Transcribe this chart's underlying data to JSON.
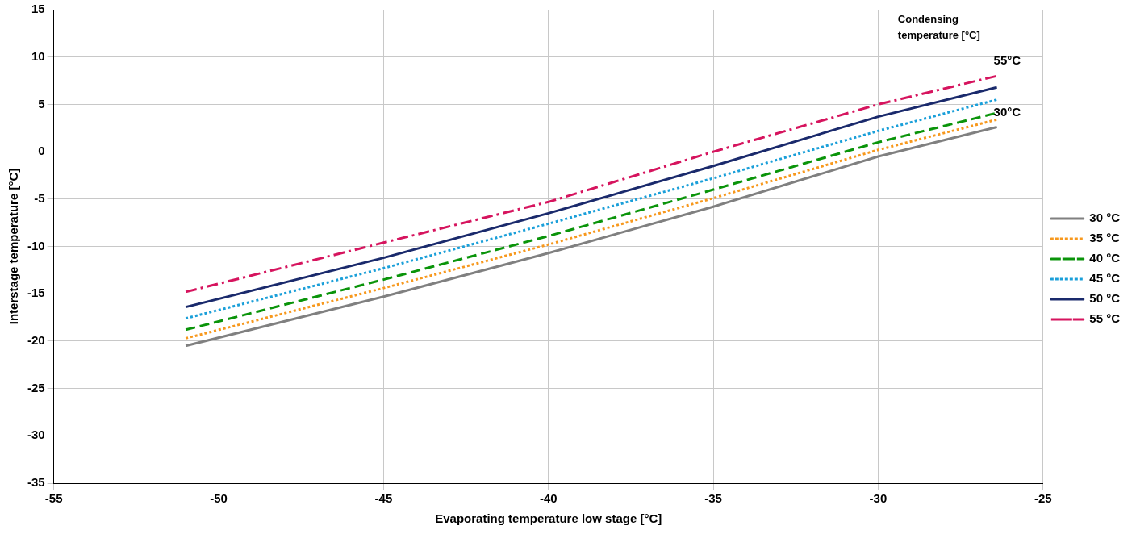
{
  "chart_data": {
    "type": "line",
    "xlabel": "Evaporating temperature low stage [°C]",
    "ylabel": "Interstage temperature [°C]",
    "xlim": [
      -55,
      -25
    ],
    "xticks": [
      -55,
      -50,
      -45,
      -40,
      -35,
      -30,
      -25
    ],
    "ylim": [
      -35,
      15
    ],
    "yticks": [
      -35,
      -30,
      -25,
      -20,
      -15,
      -10,
      -5,
      0,
      5,
      10,
      15
    ],
    "grid": true,
    "legend": "right",
    "marker": "none",
    "x": [
      -51,
      -45,
      -40,
      -35,
      -30,
      -26.4
    ],
    "series": [
      {
        "name": "30 °C",
        "color": "#808080",
        "line_style": "solid",
        "values": [
          -20.5,
          -15.3,
          -10.7,
          -5.8,
          -0.5,
          2.6
        ]
      },
      {
        "name": "35 °C",
        "color": "#f7981d",
        "line_style": "dotted",
        "values": [
          -19.7,
          -14.4,
          -9.8,
          -4.9,
          0.2,
          3.4
        ]
      },
      {
        "name": "40 °C",
        "color": "#0a940a",
        "line_style": "dashed",
        "values": [
          -18.8,
          -13.5,
          -8.9,
          -4.0,
          1.0,
          4.1
        ]
      },
      {
        "name": "45 °C",
        "color": "#1a9fd9",
        "line_style": "dotted",
        "values": [
          -17.6,
          -12.3,
          -7.6,
          -2.8,
          2.2,
          5.5
        ]
      },
      {
        "name": "50 °C",
        "color": "#1a2a6c",
        "line_style": "solid",
        "values": [
          -16.4,
          -11.2,
          -6.5,
          -1.5,
          3.7,
          6.8
        ]
      },
      {
        "name": "55 °C",
        "color": "#d6145e",
        "line_style": "dashdot",
        "values": [
          -14.8,
          -9.6,
          -5.3,
          0.0,
          5.0,
          8.0
        ]
      }
    ],
    "annotations": [
      "Condensing temperature [°C]",
      {
        "text": "55°C",
        "x": -26.4,
        "y": 8.0
      },
      {
        "text": "30°C",
        "x": -26.4,
        "y": 2.6
      }
    ]
  }
}
